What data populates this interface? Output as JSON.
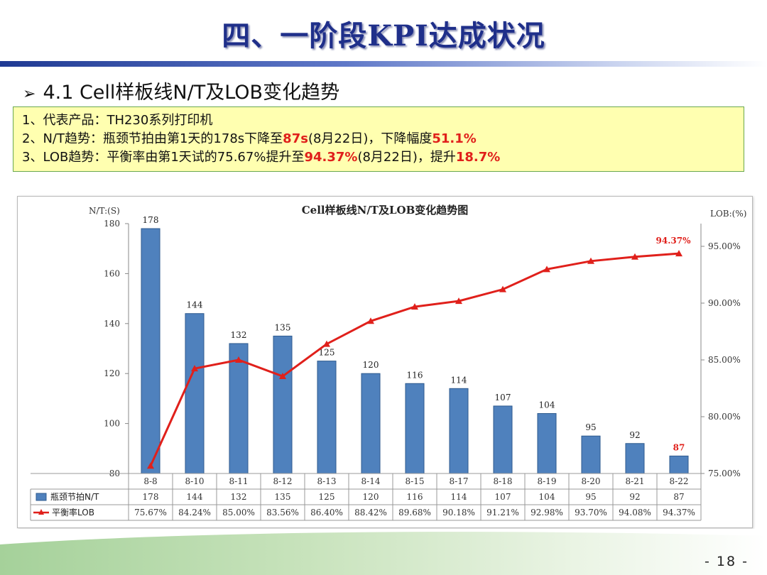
{
  "slide": {
    "title": "四、一阶段KPI达成状况",
    "section_marker": "➢",
    "section_title": "4.1  Cell样板线N/T及LOB变化趋势",
    "page_number": "- 18 -"
  },
  "summary": {
    "line1": "1、代表产品：TH230系列打印机",
    "line2_a": "2、N/T趋势：瓶颈节拍由第1天的178s下降至",
    "line2_b": "87s",
    "line2_c": "(8月22日)，下降幅度",
    "line2_d": "51.1%",
    "line3_a": "3、LOB趋势：平衡率由第1天试的75.67%提升至",
    "line3_b": "94.37%",
    "line3_c": "(8月22日)，提升",
    "line3_d": "18.7%"
  },
  "colors": {
    "bar": "#4f81bd",
    "bar_stroke": "#2f5b8f",
    "line": "#e0201b",
    "highlight": "#e0201b"
  },
  "chart_data": {
    "type": "bar",
    "title": "Cell样板线N/T及LOB变化趋势图",
    "left_axis_unit": "N/T:(S)",
    "right_axis_unit": "LOB:(%)",
    "categories": [
      "8-8",
      "8-10",
      "8-11",
      "8-12",
      "8-13",
      "8-14",
      "8-15",
      "8-17",
      "8-18",
      "8-19",
      "8-20",
      "8-21",
      "8-22"
    ],
    "left_ylim": [
      80,
      180
    ],
    "left_ticks": [
      80,
      100,
      120,
      140,
      160,
      180
    ],
    "right_ylim": [
      75,
      97
    ],
    "right_ticks": [
      75,
      80,
      85,
      90,
      95
    ],
    "right_tick_labels": [
      "75.00%",
      "80.00%",
      "85.00%",
      "90.00%",
      "95.00%"
    ],
    "series": [
      {
        "name": "瓶颈节拍N/T",
        "type": "bar",
        "axis": "left",
        "values": [
          178,
          144,
          132,
          135,
          125,
          120,
          116,
          114,
          107,
          104,
          95,
          92,
          87
        ],
        "labels": [
          "178",
          "144",
          "132",
          "135",
          "125",
          "120",
          "116",
          "114",
          "107",
          "104",
          "95",
          "92",
          "87"
        ]
      },
      {
        "name": "平衡率LOB",
        "type": "line",
        "axis": "right",
        "values": [
          75.67,
          84.24,
          85.0,
          83.56,
          86.4,
          88.42,
          89.68,
          90.18,
          91.21,
          92.98,
          93.7,
          94.08,
          94.37
        ],
        "labels": [
          "75.67%",
          "84.24%",
          "85.00%",
          "83.56%",
          "86.40%",
          "88.42%",
          "89.68%",
          "90.18%",
          "91.21%",
          "92.98%",
          "93.70%",
          "94.08%",
          "94.37%"
        ]
      }
    ],
    "annotations": {
      "last_bar_label": "87",
      "last_line_label": "94.37%"
    },
    "data_table": true,
    "legend": "in-table"
  }
}
